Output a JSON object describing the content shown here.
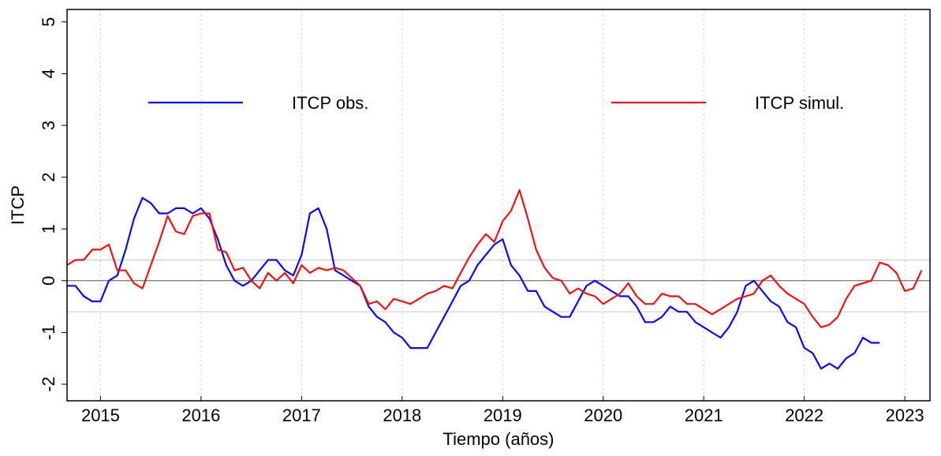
{
  "chart_data": {
    "type": "line",
    "x_label": "Tiempo (años)",
    "y_label": "ITCP",
    "x": [
      2014.667,
      2014.75,
      2014.833,
      2014.917,
      2015,
      2015.083,
      2015.167,
      2015.25,
      2015.333,
      2015.417,
      2015.5,
      2015.583,
      2015.667,
      2015.75,
      2015.833,
      2015.917,
      2016,
      2016.083,
      2016.167,
      2016.25,
      2016.333,
      2016.417,
      2016.5,
      2016.583,
      2016.667,
      2016.75,
      2016.833,
      2016.917,
      2017,
      2017.083,
      2017.167,
      2017.25,
      2017.333,
      2017.417,
      2017.5,
      2017.583,
      2017.667,
      2017.75,
      2017.833,
      2017.917,
      2018,
      2018.083,
      2018.167,
      2018.25,
      2018.333,
      2018.417,
      2018.5,
      2018.583,
      2018.667,
      2018.75,
      2018.833,
      2018.917,
      2019,
      2019.083,
      2019.167,
      2019.25,
      2019.333,
      2019.417,
      2019.5,
      2019.583,
      2019.667,
      2019.75,
      2019.833,
      2019.917,
      2020,
      2020.083,
      2020.167,
      2020.25,
      2020.333,
      2020.417,
      2020.5,
      2020.583,
      2020.667,
      2020.75,
      2020.833,
      2020.917,
      2021,
      2021.083,
      2021.167,
      2021.25,
      2021.333,
      2021.417,
      2021.5,
      2021.583,
      2021.667,
      2021.75,
      2021.833,
      2021.917,
      2022,
      2022.083,
      2022.167,
      2022.25,
      2022.333,
      2022.417,
      2022.5,
      2022.583,
      2022.667,
      2022.75,
      2022.833,
      2022.917,
      2023,
      2023.083,
      2023.167
    ],
    "series": [
      {
        "name": "ITCP obs.",
        "color": "#0a0aeb",
        "values": [
          -0.1,
          -0.1,
          -0.3,
          -0.4,
          -0.4,
          0,
          0.1,
          0.6,
          1.2,
          1.6,
          1.5,
          1.3,
          1.3,
          1.4,
          1.4,
          1.3,
          1.4,
          1.2,
          0.8,
          0.3,
          0,
          -0.1,
          0,
          0.2,
          0.4,
          0.4,
          0.2,
          0.1,
          0.5,
          1.3,
          1.4,
          1.0,
          0.2,
          0.1,
          0,
          -0.1,
          -0.5,
          -0.7,
          -0.8,
          -1.0,
          -1.1,
          -1.3,
          -1.3,
          -1.3,
          -1.0,
          -0.7,
          -0.4,
          -0.1,
          0,
          0.3,
          0.5,
          0.7,
          0.8,
          0.3,
          0.1,
          -0.2,
          -0.2,
          -0.5,
          -0.6,
          -0.7,
          -0.7,
          -0.4,
          -0.1,
          0,
          -0.1,
          -0.2,
          -0.3,
          -0.3,
          -0.5,
          -0.8,
          -0.8,
          -0.7,
          -0.5,
          -0.6,
          -0.6,
          -0.8,
          -0.9,
          -1.0,
          -1.1,
          -0.9,
          -0.6,
          -0.1,
          0,
          -0.2,
          -0.4,
          -0.5,
          -0.8,
          -0.9,
          -1.3,
          -1.4,
          -1.7,
          -1.6,
          -1.7,
          -1.5,
          -1.4,
          -1.1,
          -1.2,
          -1.2,
          null,
          null,
          null,
          null,
          null
        ]
      },
      {
        "name": "ITCP simul.",
        "color": "#e81414",
        "values": [
          0.3,
          0.4,
          0.4,
          0.6,
          0.6,
          0.7,
          0.2,
          0.2,
          -0.05,
          -0.15,
          0.3,
          0.75,
          1.25,
          0.95,
          0.9,
          1.25,
          1.3,
          1.3,
          0.6,
          0.55,
          0.2,
          0.25,
          0,
          -0.15,
          0.15,
          0,
          0.15,
          -0.05,
          0.3,
          0.15,
          0.25,
          0.2,
          0.25,
          0.2,
          0.05,
          -0.1,
          -0.45,
          -0.4,
          -0.55,
          -0.35,
          -0.4,
          -0.45,
          -0.35,
          -0.25,
          -0.2,
          -0.1,
          -0.15,
          0.15,
          0.45,
          0.7,
          0.9,
          0.75,
          1.15,
          1.35,
          1.75,
          1.2,
          0.6,
          0.25,
          0.05,
          0,
          -0.25,
          -0.15,
          -0.25,
          -0.3,
          -0.45,
          -0.35,
          -0.25,
          -0.05,
          -0.3,
          -0.45,
          -0.45,
          -0.25,
          -0.3,
          -0.3,
          -0.45,
          -0.45,
          -0.55,
          -0.65,
          -0.55,
          -0.45,
          -0.35,
          -0.3,
          -0.25,
          0,
          0.1,
          -0.1,
          -0.25,
          -0.35,
          -0.45,
          -0.7,
          -0.9,
          -0.85,
          -0.7,
          -0.35,
          -0.1,
          -0.05,
          0,
          0.35,
          0.3,
          0.15,
          -0.2,
          -0.15,
          0.2
        ]
      }
    ],
    "xlim": [
      2014.667,
      2023.25
    ],
    "xticks": [
      2015,
      2016,
      2017,
      2018,
      2019,
      2020,
      2021,
      2022,
      2023
    ],
    "ylim": [
      -2.32,
      5.24
    ],
    "yticks": [
      -2,
      -1,
      0,
      1,
      2,
      3,
      4,
      5
    ],
    "x_grid": true,
    "zero_line": true,
    "ref_lines": [
      0.4,
      -0.6
    ],
    "legend": "top"
  }
}
